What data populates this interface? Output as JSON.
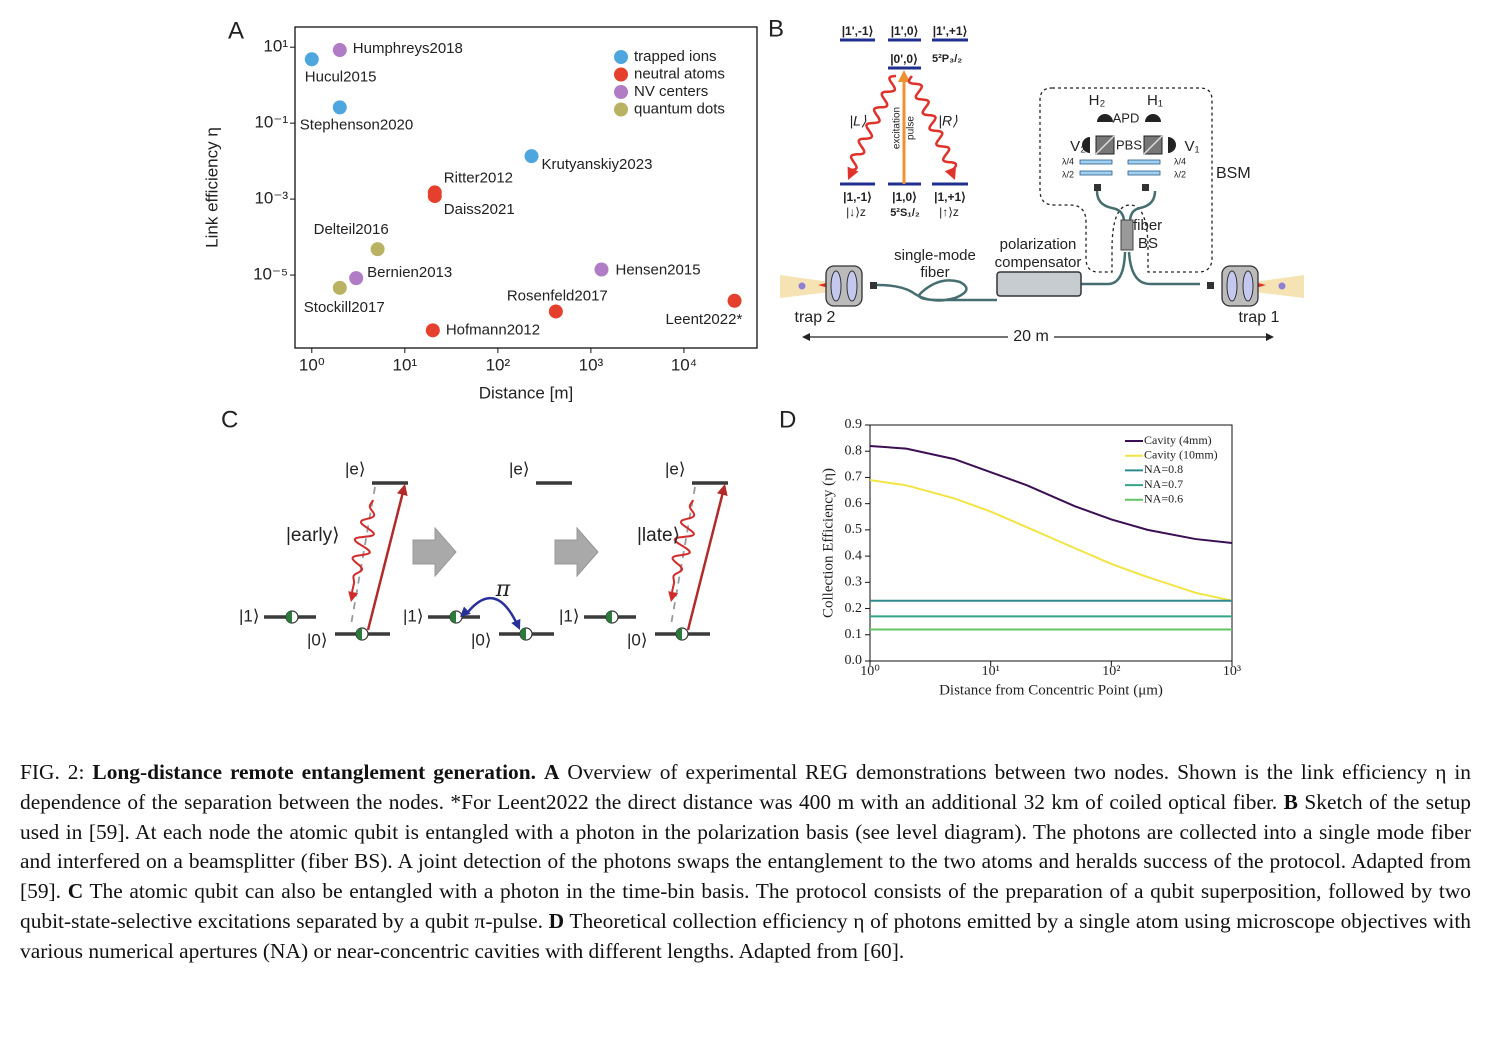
{
  "chart_data": [
    {
      "type": "scatter",
      "panel": "A",
      "xlabel": "Distance [m]",
      "ylabel": "Link efficiency η",
      "xscale": "log",
      "yscale": "log",
      "xlim": [
        0.66,
        61000
      ],
      "ylim": [
        1.2e-07,
        34
      ],
      "xticks": [
        {
          "value": 1,
          "label": "10⁰"
        },
        {
          "value": 10,
          "label": "10¹"
        },
        {
          "value": 100,
          "label": "10²"
        },
        {
          "value": 1000,
          "label": "10³"
        },
        {
          "value": 10000,
          "label": "10⁴"
        }
      ],
      "yticks": [
        {
          "value": 10,
          "label": "10¹"
        },
        {
          "value": 0.1,
          "label": "10⁻¹"
        },
        {
          "value": 0.001,
          "label": "10⁻³"
        },
        {
          "value": 1e-05,
          "label": "10⁻⁵"
        }
      ],
      "legend": "upper right",
      "series": [
        {
          "name": "trapped ions",
          "color": "#4ea6df",
          "x": [
            1,
            2,
            230
          ],
          "values": [
            4.8,
            0.26,
            0.0135
          ],
          "labels": [
            "Hucul2015",
            "Stephenson2020",
            "Krutyanskiy2023"
          ]
        },
        {
          "name": "neutral atoms",
          "color": "#e5402d",
          "x": [
            21,
            21,
            20,
            420,
            35000
          ],
          "values": [
            0.0015,
            0.0012,
            3.5e-07,
            1.1e-06,
            2.1e-06
          ],
          "labels": [
            "Ritter2012",
            "Daiss2021",
            "Hofmann2012",
            "Rosenfeld2017",
            "Leent2022*"
          ]
        },
        {
          "name": "NV centers",
          "color": "#b07cc5",
          "x": [
            2,
            3,
            1300
          ],
          "values": [
            8.4,
            8.3e-06,
            1.4e-05
          ],
          "labels": [
            "Humphreys2018",
            "Bernien2013",
            "Hensen2015"
          ]
        },
        {
          "name": "quantum dots",
          "color": "#b8b262",
          "x": [
            5.1,
            2
          ],
          "values": [
            4.8e-05,
            4.6e-06
          ],
          "labels": [
            "Delteil2016",
            "Stockill2017"
          ]
        }
      ]
    },
    {
      "type": "line",
      "panel": "D",
      "xlabel": "Distance from Concentric Point (μm)",
      "ylabel": "Collection Efficiency (η)",
      "xscale": "log",
      "xlim": [
        1,
        1000
      ],
      "ylim": [
        0,
        0.9
      ],
      "xticks": [
        {
          "value": 1,
          "label": "10⁰"
        },
        {
          "value": 10,
          "label": "10¹"
        },
        {
          "value": 100,
          "label": "10²"
        },
        {
          "value": 1000,
          "label": "10³"
        }
      ],
      "yticks": [
        {
          "value": 0,
          "label": "0.0"
        },
        0.1,
        0.2,
        0.3,
        0.4,
        0.5,
        0.6,
        0.7,
        0.8,
        0.9
      ],
      "legend": "upper right",
      "x": [
        1,
        2,
        5,
        10,
        20,
        50,
        100,
        200,
        500,
        1000
      ],
      "series": [
        {
          "name": "Cavity (4mm)",
          "color": "#3b0f53",
          "values": [
            0.82,
            0.81,
            0.77,
            0.72,
            0.67,
            0.59,
            0.54,
            0.5,
            0.465,
            0.45
          ]
        },
        {
          "name": "Cavity (10mm)",
          "color": "#f2e443",
          "values": [
            0.69,
            0.67,
            0.62,
            0.57,
            0.51,
            0.43,
            0.37,
            0.32,
            0.26,
            0.23
          ]
        },
        {
          "name": "NA=0.8",
          "color": "#2f8b8c",
          "values": [
            0.23,
            0.23,
            0.23,
            0.23,
            0.23,
            0.23,
            0.23,
            0.23,
            0.23,
            0.23
          ]
        },
        {
          "name": "NA=0.7",
          "color": "#35a488",
          "values": [
            0.17,
            0.17,
            0.17,
            0.17,
            0.17,
            0.17,
            0.17,
            0.17,
            0.17,
            0.17
          ]
        },
        {
          "name": "NA=0.6",
          "color": "#62c465",
          "values": [
            0.12,
            0.12,
            0.12,
            0.12,
            0.12,
            0.12,
            0.12,
            0.12,
            0.12,
            0.12
          ]
        }
      ]
    }
  ],
  "diagram_b": {
    "panel": "B",
    "excited_levels": [
      "|1',-1⟩",
      "|1',0⟩",
      "|1',+1⟩",
      "|0',0⟩"
    ],
    "excited_term": "5²P₃/₂",
    "ground_levels": [
      "|1,-1⟩",
      "|1,0⟩",
      "|1,+1⟩"
    ],
    "ground_spins": [
      "|↓⟩z",
      "|↑⟩z"
    ],
    "ground_term": "5²S₁/₂",
    "photons": [
      "|L⟩",
      "|R⟩"
    ],
    "excitation": [
      "excitation",
      "pulse"
    ],
    "detectors": [
      "H₂",
      "H₁",
      "V₂",
      "V₁"
    ],
    "apd": "APD",
    "pbs": "PBS",
    "waveplates": [
      "λ/4",
      "λ/2"
    ],
    "bsm": "BSM",
    "fiber_bs": [
      "fiber",
      "BS"
    ],
    "fiber": [
      "single-mode",
      "fiber"
    ],
    "compensator": [
      "polarization",
      "compensator"
    ],
    "traps": [
      "trap 2",
      "trap 1"
    ],
    "distance": "20 m"
  },
  "diagram_c": {
    "panel": "C",
    "excited": "|e⟩",
    "qubit": [
      "|1⟩",
      "|0⟩"
    ],
    "time_bins": [
      "|early⟩",
      "|late⟩"
    ],
    "pulse": "π"
  },
  "caption": {
    "label": "FIG. 2:",
    "title": "Long-distance remote entanglement generation.",
    "panels": [
      {
        "letter": "A",
        "text": "Overview of experimental REG demonstrations between two nodes. Shown is the link efficiency η in dependence of the separation between the nodes. *For Leent2022 the direct distance was 400 m with an additional 32 km of coiled optical fiber."
      },
      {
        "letter": "B",
        "text": "Sketch of the setup used in [59]. At each node the atomic qubit is entangled with a photon in the polarization basis (see level diagram). The photons are collected into a single mode fiber and interfered on a beamsplitter (fiber BS). A joint detection of the photons swaps the entanglement to the two atoms and heralds success of the protocol. Adapted from [59]."
      },
      {
        "letter": "C",
        "text": "The atomic qubit can also be entangled with a photon in the time-bin basis. The protocol consists of the preparation of a qubit superposition, followed by two qubit-state-selective excitations separated by a qubit π-pulse."
      },
      {
        "letter": "D",
        "text": "Theoretical collection efficiency η of photons emitted by a single atom using microscope objectives with various numerical apertures (NA) or near-concentric cavities with different lengths. Adapted from [60]."
      }
    ]
  }
}
